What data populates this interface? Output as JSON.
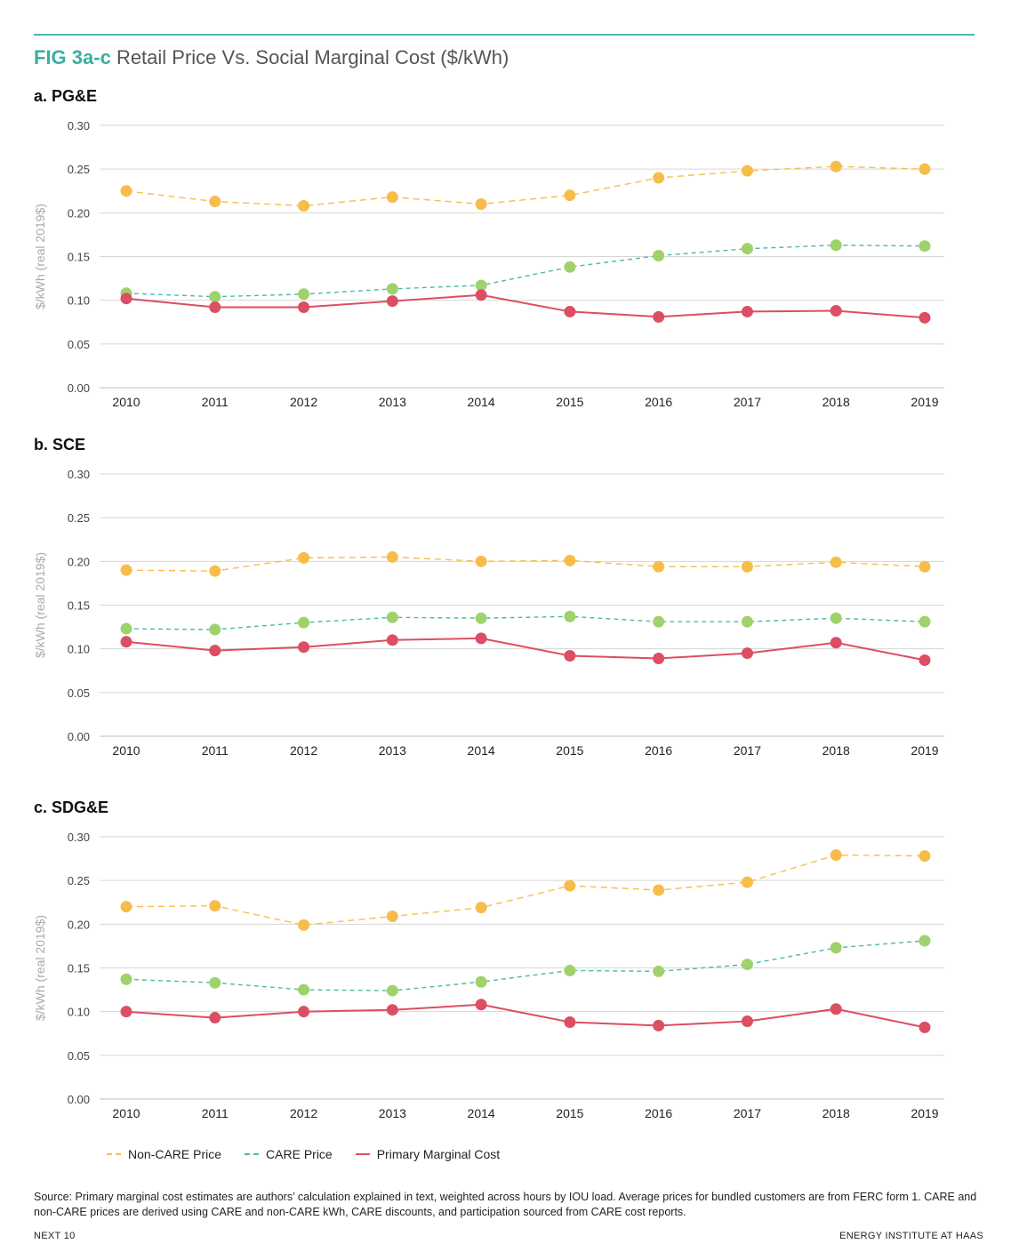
{
  "figure": {
    "tag": "FIG 3a-c",
    "title": "Retail Price Vs. Social Marginal Cost ($/kWh)"
  },
  "colors": {
    "accent": "#3aaea0",
    "non_care": "#f7bd4a",
    "care": "#9fd26b",
    "marginal": "#dc4e63",
    "grid": "#d6d6d6"
  },
  "legend": {
    "non_care": "Non-CARE Price",
    "care": "CARE Price",
    "marginal": "Primary Marginal Cost"
  },
  "chart_data": [
    {
      "type": "line",
      "title": "a. PG&E",
      "ylabel": "$/kWh (real 2019$)",
      "ylim": [
        0,
        0.3
      ],
      "yticks": [
        "0.00",
        "0.05",
        "0.10",
        "0.15",
        "0.20",
        "0.25",
        "0.30"
      ],
      "categories": [
        "2010",
        "2011",
        "2012",
        "2013",
        "2014",
        "2015",
        "2016",
        "2017",
        "2018",
        "2019"
      ],
      "grid": true,
      "series": [
        {
          "name": "Non-CARE Price",
          "values": [
            0.225,
            0.213,
            0.208,
            0.218,
            0.21,
            0.22,
            0.24,
            0.248,
            0.253,
            0.25
          ]
        },
        {
          "name": "CARE Price",
          "values": [
            0.108,
            0.104,
            0.107,
            0.113,
            0.117,
            0.138,
            0.151,
            0.159,
            0.163,
            0.162
          ]
        },
        {
          "name": "Primary Marginal Cost",
          "values": [
            0.102,
            0.092,
            0.092,
            0.099,
            0.106,
            0.087,
            0.081,
            0.087,
            0.088,
            0.08
          ]
        }
      ]
    },
    {
      "type": "line",
      "title": "b. SCE",
      "ylabel": "$/kWh (real 2019$)",
      "ylim": [
        0,
        0.3
      ],
      "yticks": [
        "0.00",
        "0.05",
        "0.10",
        "0.15",
        "0.20",
        "0.25",
        "0.30"
      ],
      "categories": [
        "2010",
        "2011",
        "2012",
        "2013",
        "2014",
        "2015",
        "2016",
        "2017",
        "2018",
        "2019"
      ],
      "grid": true,
      "series": [
        {
          "name": "Non-CARE Price",
          "values": [
            0.19,
            0.189,
            0.204,
            0.205,
            0.2,
            0.201,
            0.194,
            0.194,
            0.199,
            0.194
          ]
        },
        {
          "name": "CARE Price",
          "values": [
            0.123,
            0.122,
            0.13,
            0.136,
            0.135,
            0.137,
            0.131,
            0.131,
            0.135,
            0.131
          ]
        },
        {
          "name": "Primary Marginal Cost",
          "values": [
            0.108,
            0.098,
            0.102,
            0.11,
            0.112,
            0.092,
            0.089,
            0.095,
            0.107,
            0.087
          ]
        }
      ]
    },
    {
      "type": "line",
      "title": "c. SDG&E",
      "ylabel": "$/kWh (real 2019$)",
      "ylim": [
        0,
        0.3
      ],
      "yticks": [
        "0.00",
        "0.05",
        "0.10",
        "0.15",
        "0.20",
        "0.25",
        "0.30"
      ],
      "categories": [
        "2010",
        "2011",
        "2012",
        "2013",
        "2014",
        "2015",
        "2016",
        "2017",
        "2018",
        "2019"
      ],
      "grid": true,
      "series": [
        {
          "name": "Non-CARE Price",
          "values": [
            0.22,
            0.221,
            0.199,
            0.209,
            0.219,
            0.244,
            0.239,
            0.248,
            0.279,
            0.278
          ]
        },
        {
          "name": "CARE Price",
          "values": [
            0.137,
            0.133,
            0.125,
            0.124,
            0.134,
            0.147,
            0.146,
            0.154,
            0.173,
            0.181
          ]
        },
        {
          "name": "Primary Marginal Cost",
          "values": [
            0.1,
            0.093,
            0.1,
            0.102,
            0.108,
            0.088,
            0.084,
            0.089,
            0.103,
            0.082
          ]
        }
      ]
    }
  ],
  "source_text": "Source: Primary marginal cost estimates are authors’ calculation explained in text, weighted across hours by IOU load. Average prices for bundled customers are from FERC form 1. CARE and non-CARE prices are derived using CARE and non-CARE kWh, CARE discounts, and participation sourced from CARE cost reports.",
  "footer": {
    "left": "NEXT 10",
    "right": "ENERGY INSTITUTE AT HAAS"
  }
}
